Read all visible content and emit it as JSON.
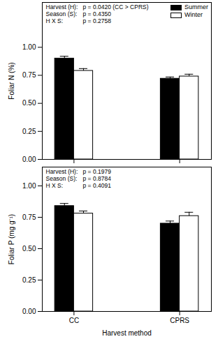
{
  "chart_data": [
    {
      "type": "bar",
      "y_label": "Foliar N (%)",
      "categories": [
        "CC",
        "CPRS"
      ],
      "series": [
        {
          "name": "Summer",
          "color": "#000000",
          "values": [
            0.9,
            0.72
          ],
          "errors": [
            0.02,
            0.015
          ]
        },
        {
          "name": "Winter",
          "color": "#ffffff",
          "values": [
            0.79,
            0.74
          ],
          "errors": [
            0.02,
            0.02
          ]
        }
      ],
      "ylim": [
        0,
        1.4
      ],
      "yticks": [
        {
          "value": 0,
          "label": "0.00"
        },
        {
          "value": 0.25,
          "label": "0.25"
        },
        {
          "value": 0.5,
          "label": "0.50"
        },
        {
          "value": 0.75,
          "label": "0.75"
        },
        {
          "value": 1,
          "label": "1.00"
        }
      ],
      "stats": [
        {
          "label": "Harvest (H):",
          "text": "p = 0.0420 (CC > CPRS)"
        },
        {
          "label": "Season (S):",
          "text": "p = 0.4350"
        },
        {
          "label": "H X S:",
          "text": "p = 0.2758"
        }
      ],
      "legend": "top-right",
      "tick_labels": "y"
    },
    {
      "type": "bar",
      "y_label": "Foliar P (mg g⁻¹)",
      "x_label": "Harvest method",
      "categories": [
        "CC",
        "CPRS"
      ],
      "series": [
        {
          "name": "Summer",
          "color": "#000000",
          "values": [
            0.84,
            0.7
          ],
          "errors": [
            0.02,
            0.02
          ]
        },
        {
          "name": "Winter",
          "color": "#ffffff",
          "values": [
            0.78,
            0.76
          ],
          "errors": [
            0.02,
            0.03
          ]
        }
      ],
      "ylim": [
        0,
        1.15
      ],
      "yticks": [
        {
          "value": 0,
          "label": "0.00"
        },
        {
          "value": 0.25,
          "label": "0.25"
        },
        {
          "value": 0.5,
          "label": "0.50"
        },
        {
          "value": 0.75,
          "label": "0.75"
        },
        {
          "value": 1,
          "label": "1.00"
        }
      ],
      "stats": [
        {
          "label": "Harvest (H):",
          "text": "p = 0.1979"
        },
        {
          "label": "Season (S):",
          "text": "p = 0.8784"
        },
        {
          "label": "H X S:",
          "text": "p = 0.4091"
        }
      ]
    }
  ]
}
